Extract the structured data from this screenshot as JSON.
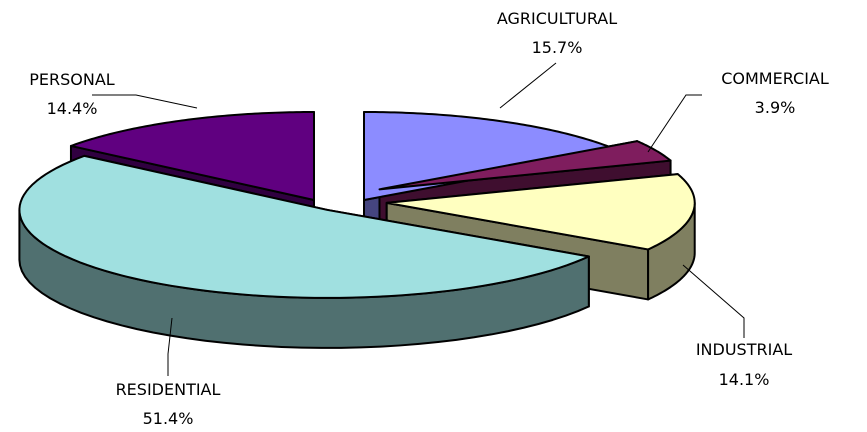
{
  "chart_data": {
    "type": "pie",
    "style": "3d-exploded",
    "title": "",
    "slices": [
      {
        "name": "AGRICULTURAL",
        "value": 15.7,
        "label": "15.7%",
        "color": "#8C8CFF",
        "side_color": "#45457F"
      },
      {
        "name": "COMMERCIAL",
        "value": 3.9,
        "label": "3.9%",
        "color": "#7F1D5E",
        "side_color": "#3F0E2F"
      },
      {
        "name": "INDUSTRIAL",
        "value": 14.1,
        "label": "14.1%",
        "color": "#FFFFC0",
        "side_color": "#7F7F60"
      },
      {
        "name": "RESIDENTIAL",
        "value": 51.4,
        "label": "51.4%",
        "color": "#A0E0E0",
        "side_color": "#507070"
      },
      {
        "name": "PERSONAL",
        "value": 14.4,
        "label": "14.4%",
        "color": "#600080",
        "side_color": "#300040"
      }
    ]
  }
}
